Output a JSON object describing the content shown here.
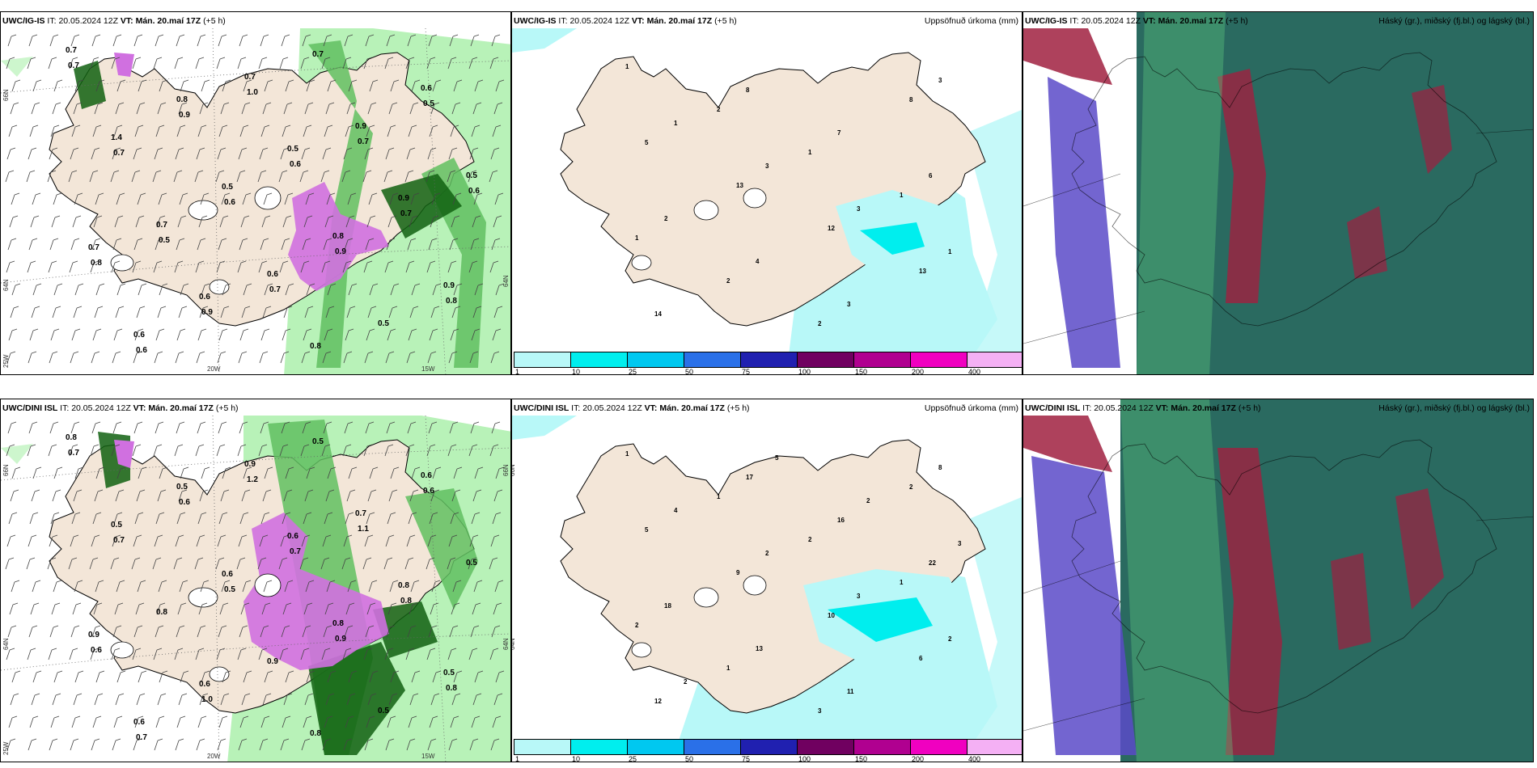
{
  "rows": [
    {
      "panels": [
        {
          "model": "UWC/IG-IS",
          "it_label": "IT:",
          "it_value": "20.05.2024 12Z",
          "vt_label": "VT:",
          "vt_value": "Mán. 20.maí 17Z",
          "lead": "(+5 h)",
          "right_title": ""
        },
        {
          "model": "UWC/IG-IS",
          "it_label": "IT:",
          "it_value": "20.05.2024 12Z",
          "vt_label": "VT:",
          "vt_value": "Mán. 20.maí 17Z",
          "lead": "(+5 h)",
          "right_title": "Uppsöfnuð úrkoma (mm)"
        },
        {
          "model": "UWC/IG-IS",
          "it_label": "IT:",
          "it_value": "20.05.2024 12Z",
          "vt_label": "VT:",
          "vt_value": "Mán. 20.maí 17Z",
          "lead": "(+5 h)",
          "right_title": "Háský (gr.), miðský (fj.bl.) og lágský (bl.)"
        }
      ]
    },
    {
      "panels": [
        {
          "model": "UWC/DINI ISL",
          "it_label": "IT:",
          "it_value": "20.05.2024 12Z",
          "vt_label": "VT:",
          "vt_value": "Mán. 20.maí 17Z",
          "lead": "(+5 h)",
          "right_title": ""
        },
        {
          "model": "UWC/DINI ISL",
          "it_label": "IT:",
          "it_value": "20.05.2024 12Z",
          "vt_label": "VT:",
          "vt_value": "Mán. 20.maí 17Z",
          "lead": "(+5 h)",
          "right_title": "Uppsöfnuð úrkoma (mm)"
        },
        {
          "model": "UWC/DINI ISL",
          "it_label": "IT:",
          "it_value": "20.05.2024 12Z",
          "vt_label": "VT:",
          "vt_value": "Mán. 20.maí 17Z",
          "lead": "(+5 h)",
          "right_title": "Háský (gr.), miðský (fj.bl.) og lágský (bl.)"
        }
      ]
    }
  ],
  "grid_labels": {
    "lat_66": "66N",
    "lat_64": "64N",
    "lon_20": "20W",
    "lon_15": "15W",
    "lon_25": "25W"
  },
  "precip_legend": {
    "colors": [
      "#b8f8f8",
      "#00eeee",
      "#00c8f0",
      "#2a70e8",
      "#2020b0",
      "#700060",
      "#b00090",
      "#f000c0",
      "#f4b0f4"
    ],
    "labels": [
      "1",
      "10",
      "25",
      "50",
      "75",
      "100",
      "150",
      "200",
      "400"
    ]
  },
  "colors": {
    "land": "#f3e6d8",
    "precip_light": "#b8f2b8",
    "precip_mid": "#60c060",
    "precip_dark": "#106010",
    "precip_heavy": "#d070e0",
    "cloud_high": "#2a6a60",
    "cloud_mid": "#5a4ac8",
    "cloud_low": "#a02040"
  },
  "precip_values_top": [
    "0.7",
    "0.8",
    "0.5",
    "0.9",
    "0.7",
    "0.6",
    "0.8",
    "0.6",
    "1.4",
    "0.5",
    "0.8",
    "0.9",
    "0.6",
    "0.7",
    "0.9",
    "0.5",
    "0.7",
    "0.6",
    "0.5",
    "0.7",
    "0.9",
    "0.6",
    "0.7",
    "0.8",
    "0.9",
    "0.7",
    "0.5",
    "0.7",
    "0.6",
    "0.9",
    "0.8",
    "0.6",
    "1.0",
    "0.7",
    "0.6",
    "0.5",
    "0.7"
  ],
  "precip_values_bottom": [
    "0.8",
    "0.5",
    "0.6",
    "0.8",
    "0.9",
    "0.6",
    "0.8",
    "0.6",
    "0.5",
    "0.6",
    "0.8",
    "0.5",
    "0.6",
    "0.9",
    "0.7",
    "0.5",
    "0.8",
    "0.9",
    "0.5",
    "0.7",
    "0.6",
    "0.7",
    "0.8",
    "0.6",
    "1.0",
    "0.5",
    "0.6",
    "0.7",
    "0.5",
    "0.9",
    "0.8",
    "0.7",
    "1.2",
    "1.1"
  ],
  "accum_values_top": [
    "1",
    "2",
    "1",
    "1",
    "1",
    "2",
    "2",
    "8",
    "5",
    "13",
    "12",
    "13",
    "14",
    "8",
    "7",
    "6",
    "2",
    "4",
    "3",
    "3",
    "1",
    "3",
    "3",
    "1"
  ],
  "accum_values_bottom": [
    "1",
    "1",
    "2",
    "1",
    "2",
    "1",
    "3",
    "2",
    "5",
    "9",
    "10",
    "6",
    "12",
    "17",
    "16",
    "22",
    "18",
    "13",
    "11",
    "8",
    "4",
    "2",
    "3",
    "2",
    "2",
    "5",
    "2",
    "3"
  ]
}
